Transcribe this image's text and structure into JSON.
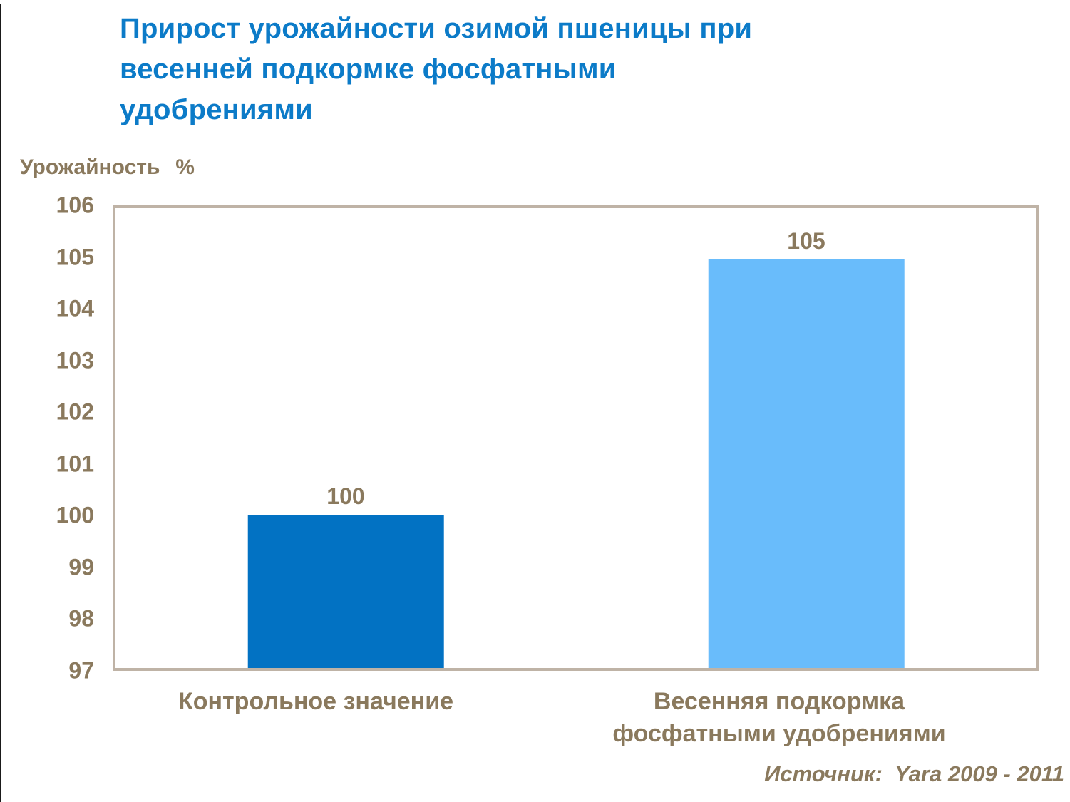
{
  "title": {
    "lines": [
      "Прирост урожайности озимой пшеницы при",
      "весенней подкормке фосфатными",
      "удобрениями"
    ],
    "color": "#0c7bc8"
  },
  "chart_data": {
    "type": "bar",
    "title": "Прирост урожайности озимой пшеницы при весенней подкормке фосфатными удобрениями",
    "ylabel": "Урожайность %",
    "xlabel": "",
    "categories": [
      "Контрольное значение",
      "Весенняя подкормка\nфосфатными удобрениями"
    ],
    "values": [
      100,
      105
    ],
    "value_labels": [
      "100",
      "105"
    ],
    "bar_colors": [
      "#0272c3",
      "#69bcfb"
    ],
    "ylim": [
      97,
      106
    ],
    "yticks": [
      97,
      98,
      99,
      100,
      101,
      102,
      103,
      104,
      105,
      106
    ],
    "grid": false,
    "legend": false,
    "source": "Источник:  Yara 2009 - 2011"
  },
  "colors": {
    "axis_text": "#8a795d",
    "plot_border": "#bfb3a6",
    "bar_control": "#0272c3",
    "bar_treated": "#69bcfb"
  }
}
